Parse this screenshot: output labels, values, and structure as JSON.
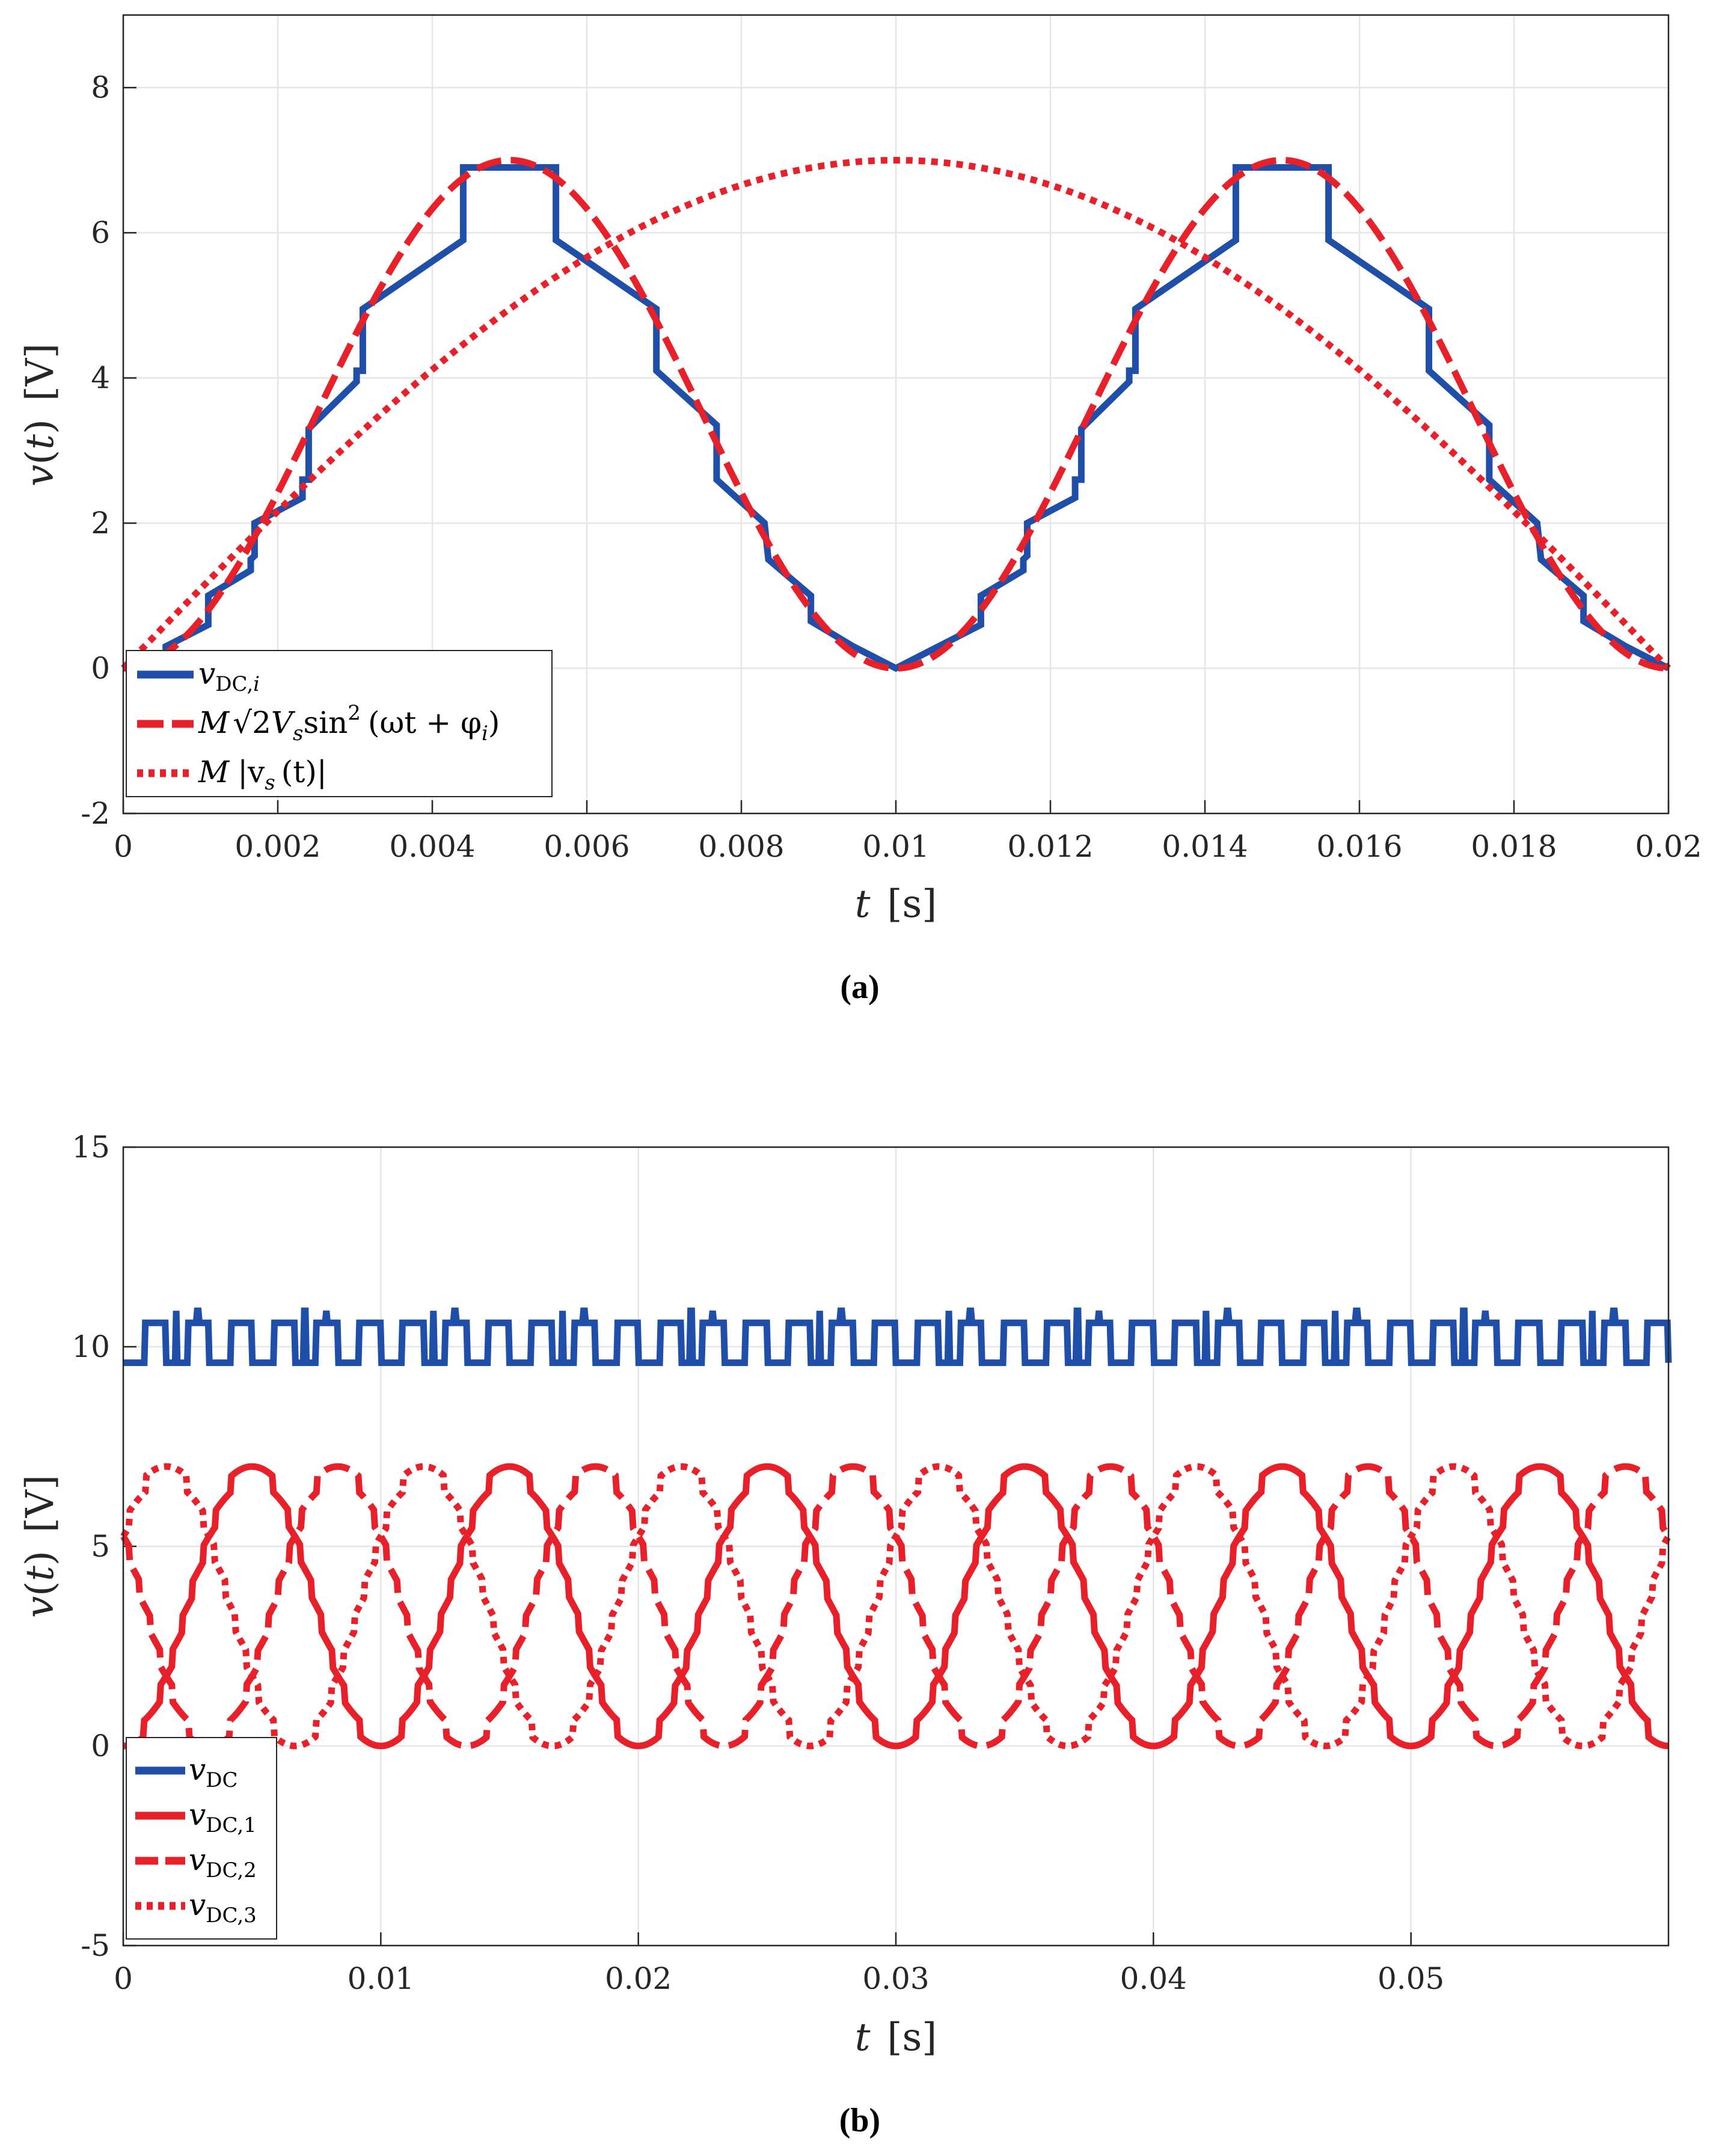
{
  "colors": {
    "blue": "#1f4fa8",
    "red": "#e8202a",
    "grid": "#e6e6e6",
    "axis": "#262626"
  },
  "chart_data": [
    {
      "type": "line",
      "panel_label": "(a)",
      "xlabel": {
        "var": "t",
        "unit": "[s]"
      },
      "ylabel": {
        "var": "v",
        "arg": "t",
        "unit": "[V]"
      },
      "xlim": [
        0,
        0.02
      ],
      "ylim": [
        -2,
        9
      ],
      "xticks": [
        0,
        0.002,
        0.004,
        0.006,
        0.008,
        0.01,
        0.012,
        0.014,
        0.016,
        0.018,
        0.02
      ],
      "xtick_labels": [
        "0",
        "0.002",
        "0.004",
        "0.006",
        "0.008",
        "0.01",
        "0.012",
        "0.014",
        "0.016",
        "0.018",
        "0.02"
      ],
      "yticks": [
        -2,
        0,
        2,
        4,
        6,
        8
      ],
      "ytick_labels": [
        "-2",
        "0",
        "2",
        "4",
        "6",
        "8"
      ],
      "grid": true,
      "legend_position": "bottom-left",
      "series": [
        {
          "legend": "v_{DC,i}",
          "legend_parts": {
            "v": "v",
            "sub": "DC,",
            "subi": "i"
          },
          "color": "blue",
          "style": "solid",
          "x": [
            0.0,
            0.00055,
            0.00055,
            0.0011,
            0.0011,
            0.00165,
            0.00165,
            0.0017,
            0.0017,
            0.00232,
            0.00232,
            0.0024,
            0.0024,
            0.00302,
            0.00302,
            0.0031,
            0.0031,
            0.0044,
            0.0044,
            0.0056,
            0.0056,
            0.0069,
            0.0069,
            0.00768,
            0.00768,
            0.0083,
            0.0083,
            0.00835,
            0.00835,
            0.0089,
            0.0089,
            0.00945,
            0.00945,
            0.01,
            0.01055,
            0.01055,
            0.0111,
            0.0111,
            0.01165,
            0.01165,
            0.0117,
            0.0117,
            0.01232,
            0.01232,
            0.0124,
            0.0124,
            0.01302,
            0.01302,
            0.0131,
            0.0131,
            0.0144,
            0.0144,
            0.0156,
            0.0156,
            0.0169,
            0.0169,
            0.01768,
            0.01768,
            0.0183,
            0.0183,
            0.01835,
            0.01835,
            0.0189,
            0.0189,
            0.01945,
            0.01945,
            0.02
          ],
          "y": [
            0.0,
            0.0,
            0.3,
            0.6,
            1.0,
            1.35,
            1.5,
            1.55,
            2.0,
            2.35,
            2.6,
            2.6,
            3.3,
            3.95,
            4.1,
            4.1,
            4.95,
            5.9,
            6.9,
            6.9,
            5.9,
            4.95,
            4.1,
            3.35,
            2.6,
            2.0,
            2.0,
            1.5,
            1.5,
            1.0,
            0.65,
            0.3,
            0.3,
            0.0,
            0.3,
            0.3,
            0.6,
            1.0,
            1.35,
            1.5,
            1.55,
            2.0,
            2.35,
            2.6,
            2.6,
            3.3,
            3.95,
            4.1,
            4.1,
            4.95,
            5.9,
            6.9,
            6.9,
            5.9,
            4.95,
            4.1,
            3.35,
            2.6,
            2.0,
            2.0,
            1.5,
            1.5,
            1.0,
            0.65,
            0.3,
            0.3,
            0.0
          ]
        },
        {
          "legend": "M √2 V_s sin^2 (ωt + φ_i)",
          "legend_parts": {
            "M": "M",
            "sqrt": "√2",
            "V": "V",
            "s": "s",
            "sin": "sin",
            "sup": "2",
            "args": "(ωt + φ",
            "i": "i",
            "close": ")"
          },
          "color": "red",
          "style": "dashed",
          "func": "sin2",
          "amplitude": 7.0,
          "frequency_hz": 50
        },
        {
          "legend": "M |v_s (t)|",
          "legend_parts": {
            "M": "M",
            "open": "|v",
            "s": "s",
            "arg": "(t)|"
          },
          "color": "red",
          "style": "dotted",
          "func": "abs_sin",
          "amplitude": 7.0,
          "frequency_hz": 50
        }
      ]
    },
    {
      "type": "line",
      "panel_label": "(b)",
      "xlabel": {
        "var": "t",
        "unit": "[s]"
      },
      "ylabel": {
        "var": "v",
        "arg": "t",
        "unit": "[V]"
      },
      "xlim": [
        0,
        0.06
      ],
      "ylim": [
        -5,
        15
      ],
      "xticks": [
        0,
        0.01,
        0.02,
        0.03,
        0.04,
        0.05
      ],
      "xtick_labels": [
        "0",
        "0.01",
        "0.02",
        "0.03",
        "0.04",
        "0.05"
      ],
      "yticks": [
        -5,
        0,
        5,
        10,
        15
      ],
      "ytick_labels": [
        "-5",
        "0",
        "5",
        "10",
        "15"
      ],
      "grid": true,
      "legend_position": "bottom-left",
      "series": [
        {
          "legend": "v_DC",
          "legend_parts": {
            "v": "v",
            "sub": "DC"
          },
          "color": "blue",
          "style": "solid",
          "func": "dc_ripple",
          "mean": 10.1,
          "ripple_low": 9.6,
          "ripple_high": 10.6,
          "spike": 10.9,
          "ripple_frequency_hz": 600
        },
        {
          "legend": "v_DC,1",
          "legend_parts": {
            "v": "v",
            "sub": "DC,1"
          },
          "color": "red",
          "style": "solid",
          "func": "stepped_sin2",
          "amplitude": 7.0,
          "phase_deg": 0
        },
        {
          "legend": "v_DC,2",
          "legend_parts": {
            "v": "v",
            "sub": "DC,2"
          },
          "color": "red",
          "style": "dashed",
          "func": "stepped_sin2",
          "amplitude": 7.0,
          "phase_deg": 120
        },
        {
          "legend": "v_DC,3",
          "legend_parts": {
            "v": "v",
            "sub": "DC,3"
          },
          "color": "red",
          "style": "dotted",
          "func": "stepped_sin2",
          "amplitude": 7.0,
          "phase_deg": 240
        }
      ]
    }
  ]
}
